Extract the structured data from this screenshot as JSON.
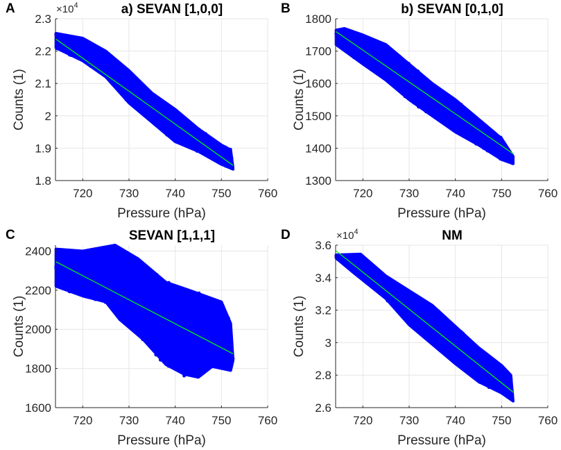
{
  "chart_data": [
    {
      "panel_label": "A",
      "title": "a) SEVAN [1,0,0]",
      "type": "scatter",
      "xlabel": "Pressure (hPa)",
      "ylabel": "Counts (1)",
      "y_multiplier": "×10",
      "y_multiplier_exp": "4",
      "xlim": [
        714.1,
        760
      ],
      "ylim": [
        1.8,
        2.3
      ],
      "xticks": [
        "720",
        "730",
        "740",
        "750",
        "760"
      ],
      "xtick_values": [
        720,
        730,
        740,
        750,
        760
      ],
      "yticks": [
        "1.8",
        "1.9",
        "2",
        "2.1",
        "2.2",
        "2.3"
      ],
      "ytick_values": [
        1.8,
        1.9,
        2.0,
        2.1,
        2.2,
        2.3
      ],
      "grid": true,
      "marker_color": "#0000ff",
      "fit_color": "#00ff00",
      "fit_line": {
        "x": [
          714.2,
          752.5
        ],
        "y": [
          2.237,
          1.847
        ]
      },
      "cloud_upper": {
        "x": [
          714.2,
          720,
          725,
          730,
          735,
          740,
          745,
          750,
          752,
          752.5
        ],
        "y": [
          2.255,
          2.24,
          2.2,
          2.14,
          2.07,
          2.02,
          1.96,
          1.91,
          1.895,
          1.84
        ]
      },
      "cloud_lower": {
        "x": [
          714.2,
          720,
          725,
          730,
          735,
          740,
          745,
          750,
          752.5
        ],
        "y": [
          2.21,
          2.17,
          2.12,
          2.04,
          1.98,
          1.92,
          1.89,
          1.85,
          1.835
        ]
      }
    },
    {
      "panel_label": "B",
      "title": "b) SEVAN [0,1,0]",
      "type": "scatter",
      "xlabel": "Pressure (hPa)",
      "ylabel": "Counts (1)",
      "xlim": [
        714.1,
        760
      ],
      "ylim": [
        1300,
        1800
      ],
      "xticks": [
        "720",
        "730",
        "740",
        "750",
        "760"
      ],
      "xtick_values": [
        720,
        730,
        740,
        750,
        760
      ],
      "yticks": [
        "1300",
        "1400",
        "1500",
        "1600",
        "1700",
        "1800"
      ],
      "ytick_values": [
        1300,
        1400,
        1500,
        1600,
        1700,
        1800
      ],
      "grid": true,
      "marker_color": "#0000ff",
      "fit_color": "#00ff00",
      "fit_line": {
        "x": [
          714.2,
          752.5
        ],
        "y": [
          1760,
          1383
        ]
      },
      "cloud_upper": {
        "x": [
          714.2,
          716,
          720,
          725,
          730,
          735,
          740,
          745,
          750,
          752.5
        ],
        "y": [
          1765,
          1770,
          1750,
          1720,
          1660,
          1600,
          1550,
          1490,
          1430,
          1375
        ]
      },
      "cloud_lower": {
        "x": [
          714.2,
          720,
          725,
          730,
          735,
          740,
          745,
          750,
          752.5
        ],
        "y": [
          1720,
          1660,
          1610,
          1550,
          1500,
          1450,
          1410,
          1365,
          1352
        ]
      }
    },
    {
      "panel_label": "C",
      "title": "SEVAN [1,1,1]",
      "type": "scatter",
      "xlabel": "Pressure (hPa)",
      "ylabel": "Counts (1)",
      "xlim": [
        714.1,
        760
      ],
      "ylim": [
        1600,
        2430
      ],
      "xticks": [
        "720",
        "730",
        "740",
        "750",
        "760"
      ],
      "xtick_values": [
        720,
        730,
        740,
        750,
        760
      ],
      "yticks": [
        "1600",
        "1800",
        "2000",
        "2200",
        "2400"
      ],
      "ytick_values": [
        1600,
        1800,
        2000,
        2200,
        2400
      ],
      "grid": true,
      "marker_color": "#0000ff",
      "fit_color": "#00ff00",
      "fit_line": {
        "x": [
          714.2,
          752.5
        ],
        "y": [
          2345,
          1875
        ]
      },
      "cloud_upper": {
        "x": [
          714.2,
          720,
          727,
          732,
          738,
          743,
          750,
          752,
          752.5
        ],
        "y": [
          2410,
          2400,
          2430,
          2360,
          2240,
          2200,
          2140,
          2030,
          1850
        ]
      },
      "cloud_lower": {
        "x": [
          714.2,
          720,
          725,
          728,
          733,
          738,
          742,
          745,
          748,
          752,
          752.5
        ],
        "y": [
          2220,
          2170,
          2140,
          2050,
          1950,
          1820,
          1770,
          1755,
          1810,
          1790,
          1840
        ]
      }
    },
    {
      "panel_label": "D",
      "title": "NM",
      "type": "scatter",
      "xlabel": "Pressure (hPa)",
      "ylabel": "Counts (1)",
      "y_multiplier": "×10",
      "y_multiplier_exp": "4",
      "xlim": [
        714.1,
        760
      ],
      "ylim": [
        2.6,
        3.6
      ],
      "xticks": [
        "720",
        "730",
        "740",
        "750",
        "760"
      ],
      "xtick_values": [
        720,
        730,
        740,
        750,
        760
      ],
      "yticks": [
        "2.6",
        "2.8",
        "3",
        "3.2",
        "3.4",
        "3.6"
      ],
      "ytick_values": [
        2.6,
        2.8,
        3.0,
        3.2,
        3.4,
        3.6
      ],
      "grid": true,
      "marker_color": "#0000ff",
      "fit_color": "#00ff00",
      "fit_line": {
        "x": [
          714.2,
          752.5
        ],
        "y": [
          3.565,
          2.695
        ]
      },
      "cloud_upper": {
        "x": [
          714.2,
          719.5,
          725,
          730,
          735,
          740,
          745,
          750,
          752,
          752.5
        ],
        "y": [
          3.54,
          3.545,
          3.41,
          3.32,
          3.23,
          3.1,
          2.97,
          2.86,
          2.8,
          2.64
        ]
      },
      "cloud_lower": {
        "x": [
          714.2,
          718,
          725,
          730,
          735,
          740,
          745,
          750,
          752.5
        ],
        "y": [
          3.52,
          3.43,
          3.27,
          3.11,
          2.99,
          2.87,
          2.76,
          2.69,
          2.64
        ]
      }
    }
  ]
}
